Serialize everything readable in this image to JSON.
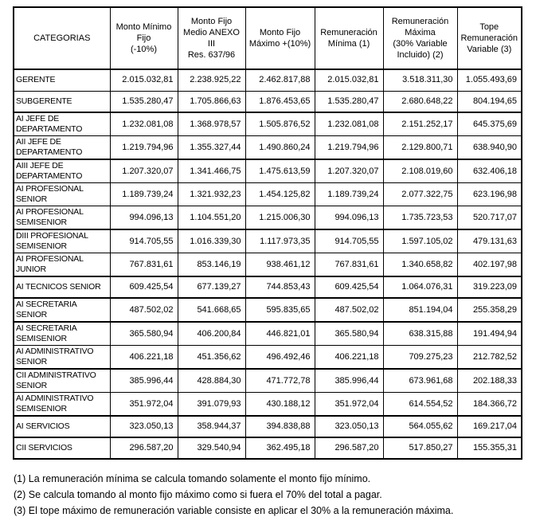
{
  "table": {
    "columns": [
      "CATEGORIAS",
      "Monto Mínimo\nFijo\n(-10%)",
      "Monto Fijo\nMedio ANEXO\nIII\nRes. 637/96",
      "Monto Fijo\nMáximo +(10%)",
      "Remuneración\nMínima (1)",
      "Remuneración\nMáxima\n(30% Variable\nIncluido) (2)",
      "Tope\nRemuneración\nVariable (3)"
    ],
    "rows": [
      {
        "category": "GERENTE",
        "values": [
          "2.015.032,81",
          "2.238.925,22",
          "2.462.817,88",
          "2.015.032,81",
          "3.518.311,30",
          "1.055.493,69"
        ]
      },
      {
        "category": "SUBGERENTE",
        "values": [
          "1.535.280,47",
          "1.705.866,63",
          "1.876.453,65",
          "1.535.280,47",
          "2.680.648,22",
          "804.194,65"
        ]
      },
      {
        "category": "AI JEFE DE DEPARTAMENTO",
        "values": [
          "1.232.081,08",
          "1.368.978,57",
          "1.505.876,52",
          "1.232.081,08",
          "2.151.252,17",
          "645.375,69"
        ]
      },
      {
        "category": "AII JEFE DE DEPARTAMENTO",
        "values": [
          "1.219.794,96",
          "1.355.327,44",
          "1.490.860,24",
          "1.219.794,96",
          "2.129.800,71",
          "638.940,90"
        ]
      },
      {
        "category": "AIII JEFE DE DEPARTAMENTO",
        "values": [
          "1.207.320,07",
          "1.341.466,75",
          "1.475.613,59",
          "1.207.320,07",
          "2.108.019,60",
          "632.406,18"
        ]
      },
      {
        "category": "AI PROFESIONAL SENIOR",
        "values": [
          "1.189.739,24",
          "1.321.932,23",
          "1.454.125,82",
          "1.189.739,24",
          "2.077.322,75",
          "623.196,98"
        ]
      },
      {
        "category": "AI PROFESIONAL SEMISENIOR",
        "values": [
          "994.096,13",
          "1.104.551,20",
          "1.215.006,30",
          "994.096,13",
          "1.735.723,53",
          "520.717,07"
        ]
      },
      {
        "category": "DIII PROFESIONAL SEMISENIOR",
        "values": [
          "914.705,55",
          "1.016.339,30",
          "1.117.973,35",
          "914.705,55",
          "1.597.105,02",
          "479.131,63"
        ]
      },
      {
        "category": "AI PROFESIONAL JUNIOR",
        "values": [
          "767.831,61",
          "853.146,19",
          "938.461,12",
          "767.831,61",
          "1.340.658,82",
          "402.197,98"
        ]
      },
      {
        "category": "AI TECNICOS SENIOR",
        "values": [
          "609.425,54",
          "677.139,27",
          "744.853,43",
          "609.425,54",
          "1.064.076,31",
          "319.223,09"
        ]
      },
      {
        "category": "AI SECRETARIA SENIOR",
        "values": [
          "487.502,02",
          "541.668,65",
          "595.835,65",
          "487.502,02",
          "851.194,04",
          "255.358,29"
        ]
      },
      {
        "category": "AI SECRETARIA SEMISENIOR",
        "values": [
          "365.580,94",
          "406.200,84",
          "446.821,01",
          "365.580,94",
          "638.315,88",
          "191.494,94"
        ]
      },
      {
        "category": "AI ADMINISTRATIVO SENIOR",
        "values": [
          "406.221,18",
          "451.356,62",
          "496.492,46",
          "406.221,18",
          "709.275,23",
          "212.782,52"
        ]
      },
      {
        "category": "CII ADMINISTRATIVO SENIOR",
        "values": [
          "385.996,44",
          "428.884,30",
          "471.772,78",
          "385.996,44",
          "673.961,68",
          "202.188,33"
        ]
      },
      {
        "category": "AI ADMINISTRATIVO SEMISENIOR",
        "values": [
          "351.972,04",
          "391.079,93",
          "430.188,12",
          "351.972,04",
          "614.554,52",
          "184.366,72"
        ]
      },
      {
        "category": "AI SERVICIOS",
        "values": [
          "323.050,13",
          "358.944,37",
          "394.838,88",
          "323.050,13",
          "564.055,62",
          "169.217,04"
        ]
      },
      {
        "category": "CII SERVICIOS",
        "values": [
          "296.587,20",
          "329.540,94",
          "362.495,18",
          "296.587,20",
          "517.850,27",
          "155.355,31"
        ]
      }
    ]
  },
  "footnotes": [
    "(1) La remuneración mínima se calcula tomando solamente el monto fijo mínimo.",
    "(2) Se calcula tomando al monto fijo máximo como si fuera el 70% del total a pagar.",
    "(3) El tope máximo de remuneración variable consiste en aplicar el 30% a la remuneración máxima."
  ]
}
